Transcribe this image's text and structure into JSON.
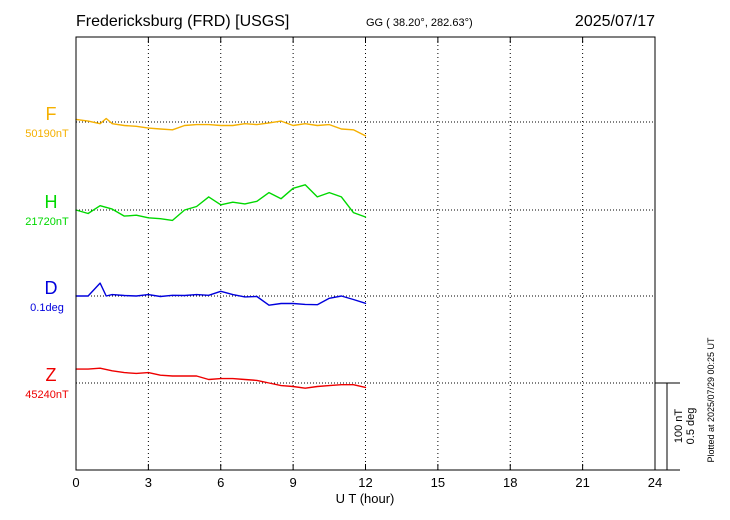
{
  "header": {
    "station_title": "Fredericksburg (FRD)  [USGS]",
    "coords": "GG ( 38.20°, 282.63°)",
    "date": "2025/07/17"
  },
  "footer": {
    "plotted_at": "Plotted at 2025/07/29 00:25 UT"
  },
  "scale_bar": {
    "line1": "100 nT",
    "line2": "0.5 deg"
  },
  "chart_data": {
    "type": "line",
    "xlabel": "U T (hour)",
    "xlim": [
      0,
      24
    ],
    "x_ticks": [
      0,
      3,
      6,
      9,
      12,
      15,
      18,
      21,
      24
    ],
    "x_tick_labels": [
      "0",
      "3",
      "6",
      "9",
      "12",
      "15",
      "18",
      "21",
      "24"
    ],
    "grid": true,
    "scale": {
      "nT_per_bar": 100,
      "deg_per_bar": 0.5
    },
    "series": [
      {
        "name": "F",
        "baseline_label": "50190nT",
        "baseline": 50190,
        "color": "#f5b000",
        "x": [
          0.0,
          0.5,
          1.0,
          1.25,
          1.5,
          2.0,
          2.5,
          3.0,
          3.5,
          4.0,
          4.5,
          5.0,
          5.5,
          6.0,
          6.5,
          7.0,
          7.5,
          8.0,
          8.5,
          9.0,
          9.5,
          10.0,
          10.5,
          11.0,
          11.5,
          12.0
        ],
        "y": [
          50193,
          50191,
          50188,
          50194,
          50188,
          50186,
          50185,
          50183,
          50182,
          50181,
          50186,
          50187,
          50187,
          50186,
          50186,
          50188,
          50187,
          50189,
          50191,
          50186,
          50188,
          50186,
          50187,
          50182,
          50181,
          50174
        ]
      },
      {
        "name": "H",
        "baseline_label": "21720nT",
        "baseline": 21720,
        "color": "#00d800",
        "x": [
          0.0,
          0.5,
          1.0,
          1.5,
          2.0,
          2.5,
          3.0,
          3.5,
          4.0,
          4.5,
          5.0,
          5.5,
          6.0,
          6.5,
          7.0,
          7.5,
          8.0,
          8.5,
          9.0,
          9.5,
          10.0,
          10.5,
          11.0,
          11.5,
          12.0
        ],
        "y": [
          21720,
          21716,
          21725,
          21721,
          21713,
          21714,
          21711,
          21710,
          21708,
          21720,
          21724,
          21735,
          21726,
          21729,
          21727,
          21730,
          21740,
          21733,
          21745,
          21749,
          21735,
          21740,
          21735,
          21717,
          21712
        ]
      },
      {
        "name": "D",
        "baseline_label": "0.1deg",
        "baseline": 0.1,
        "color": "#0000dd",
        "x": [
          0.0,
          0.5,
          1.0,
          1.25,
          1.5,
          2.0,
          2.5,
          3.0,
          3.5,
          4.0,
          4.5,
          5.0,
          5.5,
          6.0,
          6.5,
          7.0,
          7.5,
          8.0,
          8.5,
          9.0,
          9.5,
          10.0,
          10.5,
          11.0,
          11.5,
          12.0
        ],
        "y": [
          0.1,
          0.1,
          0.174,
          0.1,
          0.108,
          0.103,
          0.1,
          0.108,
          0.097,
          0.104,
          0.103,
          0.108,
          0.104,
          0.127,
          0.108,
          0.095,
          0.097,
          0.047,
          0.057,
          0.057,
          0.052,
          0.05,
          0.087,
          0.1,
          0.08,
          0.058
        ]
      },
      {
        "name": "Z",
        "baseline_label": "45240nT",
        "baseline": 45240,
        "color": "#ee0000",
        "x": [
          0.0,
          0.5,
          1.0,
          1.5,
          2.0,
          2.5,
          3.0,
          3.5,
          4.0,
          4.5,
          5.0,
          5.5,
          6.0,
          6.5,
          7.0,
          7.5,
          8.0,
          8.5,
          9.0,
          9.5,
          10.0,
          10.5,
          11.0,
          11.5,
          12.0
        ],
        "y": [
          45256,
          45256,
          45257,
          45254,
          45252,
          45251,
          45252,
          45249,
          45248,
          45248,
          45248,
          45244,
          45245,
          45245,
          45244,
          45243,
          45240,
          45237,
          45236,
          45234,
          45236,
          45237,
          45238,
          45238,
          45235
        ]
      }
    ]
  }
}
